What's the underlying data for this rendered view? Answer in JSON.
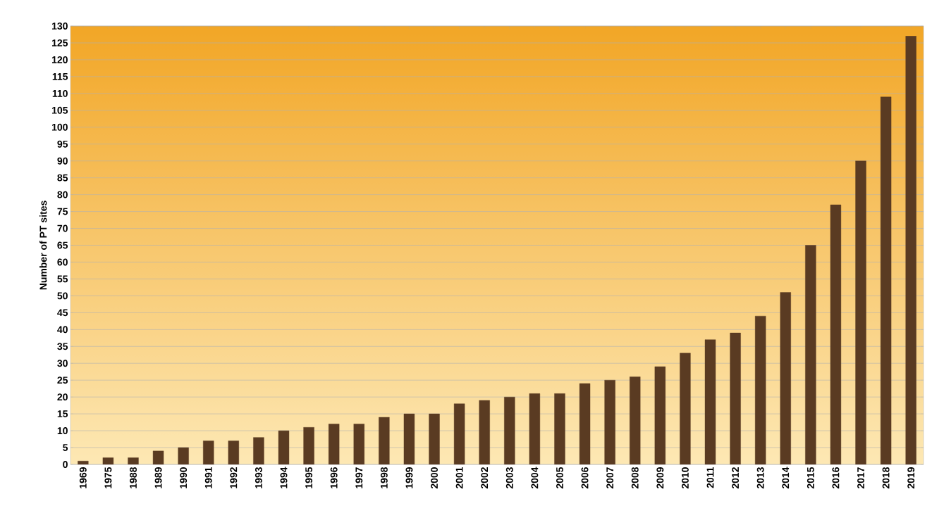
{
  "chart_data": {
    "type": "bar",
    "ylabel": "Number of PT sites",
    "categories": [
      "1969",
      "1975",
      "1988",
      "1989",
      "1990",
      "1991",
      "1992",
      "1993",
      "1994",
      "1995",
      "1996",
      "1997",
      "1998",
      "1999",
      "2000",
      "2001",
      "2002",
      "2003",
      "2004",
      "2005",
      "2006",
      "2007",
      "2008",
      "2009",
      "2010",
      "2011",
      "2012",
      "2013",
      "2014",
      "2015",
      "2016",
      "2017",
      "2018",
      "2019"
    ],
    "values": [
      1,
      2,
      2,
      4,
      5,
      7,
      7,
      8,
      10,
      11,
      12,
      12,
      14,
      15,
      15,
      18,
      19,
      20,
      21,
      21,
      24,
      25,
      26,
      29,
      33,
      37,
      39,
      44,
      51,
      65,
      77,
      90,
      109,
      127
    ],
    "color": "#5a3b22",
    "ylim": [
      0,
      130
    ],
    "yticks": [
      0,
      5,
      10,
      15,
      20,
      25,
      30,
      35,
      40,
      45,
      50,
      55,
      60,
      65,
      70,
      75,
      80,
      85,
      90,
      95,
      100,
      105,
      110,
      115,
      120,
      125,
      130
    ],
    "grid": "y"
  }
}
